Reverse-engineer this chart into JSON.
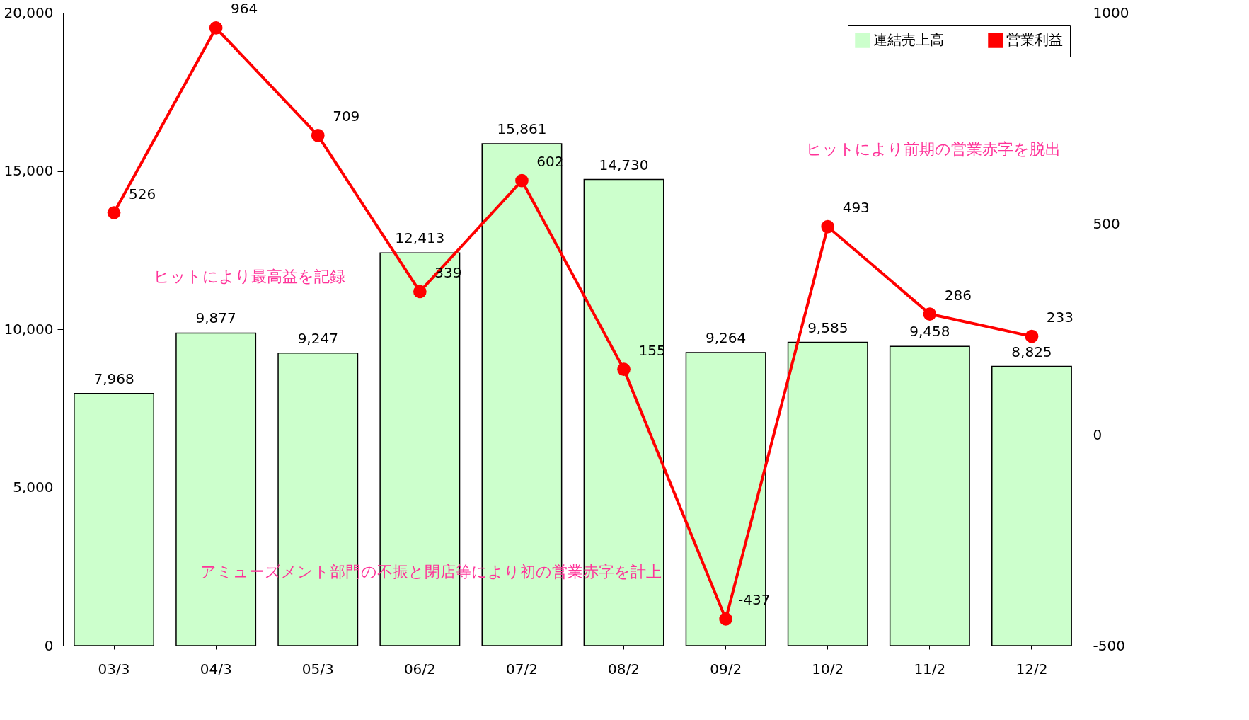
{
  "chart_data": {
    "type": "bar",
    "categories": [
      "03/3",
      "04/3",
      "05/3",
      "06/2",
      "07/2",
      "08/2",
      "09/2",
      "10/2",
      "11/2",
      "12/2"
    ],
    "series": [
      {
        "name": "連結売上高",
        "color": "#ccffcc",
        "values": [
          7968,
          9877,
          9247,
          12413,
          15861,
          14730,
          9264,
          9585,
          9458,
          8825
        ],
        "value_labels": [
          "7,968",
          "9,877",
          "9,247",
          "12,413",
          "15,861",
          "14,730",
          "9,264",
          "9,585",
          "9,458",
          "8,825"
        ]
      },
      {
        "name": "営業利益",
        "type": "line",
        "axis": "y2",
        "color": "#ff0000",
        "marker": "circle",
        "values": [
          526,
          964,
          709,
          339,
          602,
          155,
          -437,
          493,
          286,
          233
        ],
        "value_labels": [
          "526",
          "964",
          "709",
          "339",
          "602",
          "155",
          "-437",
          "493",
          "286",
          "233"
        ]
      }
    ],
    "ylim": [
      0,
      20000
    ],
    "yticks": [
      0,
      {
        "value": 5000,
        "label": "5,000"
      },
      {
        "value": 10000,
        "label": "10,000"
      },
      {
        "value": 15000,
        "label": "15,000"
      },
      {
        "value": 20000,
        "label": "20,000"
      }
    ],
    "y2lim": [
      -500,
      1000
    ],
    "y2ticks": [
      -500,
      0,
      500,
      1000
    ],
    "legend": "top right",
    "grid": false,
    "annotations": [
      "ヒットにより最高益を記録",
      "アミューズメント部門の不振と閉店等により初の営業赤字を計上",
      "ヒットにより前期の営業赤字を脱出"
    ]
  }
}
